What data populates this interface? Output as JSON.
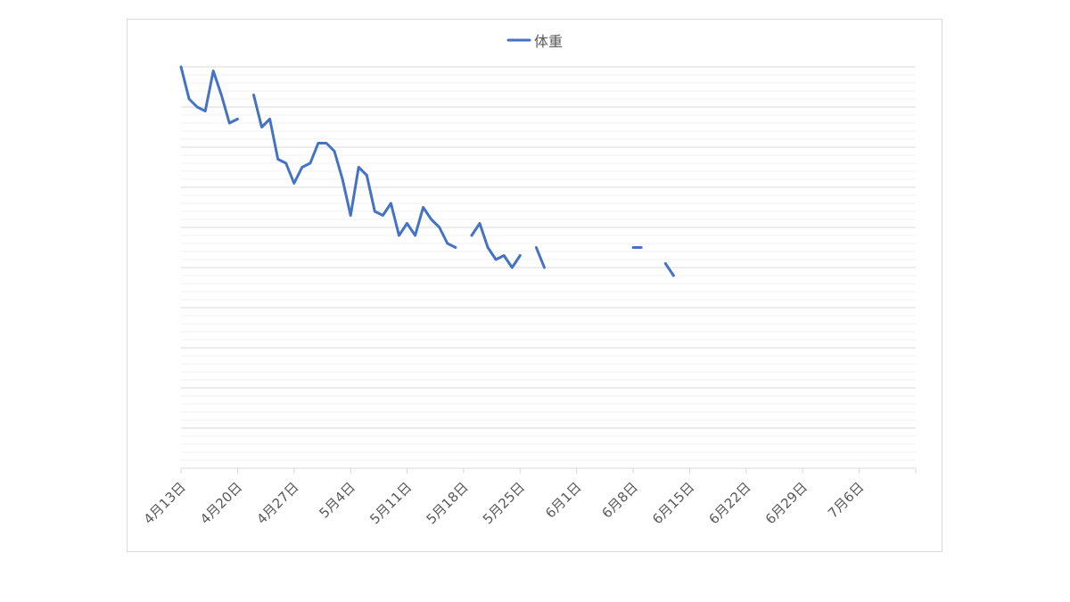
{
  "chart_data": {
    "type": "line",
    "title": "",
    "xlabel": "",
    "ylabel": "",
    "legend": {
      "position": "top",
      "label": "体重"
    },
    "series": [
      {
        "name": "体重",
        "color": "#4472c4",
        "segments": [
          [
            [
              0,
              100
            ],
            [
              1,
              92
            ],
            [
              2,
              90
            ],
            [
              3,
              89
            ],
            [
              4,
              99
            ],
            [
              5,
              93
            ],
            [
              6,
              86
            ],
            [
              7,
              87
            ]
          ],
          [
            [
              9,
              93
            ],
            [
              10,
              85
            ],
            [
              11,
              87
            ],
            [
              12,
              77
            ],
            [
              13,
              76
            ],
            [
              14,
              71
            ],
            [
              15,
              75
            ],
            [
              16,
              76
            ],
            [
              17,
              81
            ],
            [
              18,
              81
            ],
            [
              19,
              79
            ],
            [
              20,
              72
            ],
            [
              21,
              63
            ],
            [
              22,
              75
            ],
            [
              23,
              73
            ],
            [
              24,
              64
            ],
            [
              25,
              63
            ],
            [
              26,
              66
            ],
            [
              27,
              58
            ],
            [
              28,
              61
            ],
            [
              29,
              58
            ],
            [
              30,
              65
            ],
            [
              31,
              62
            ],
            [
              32,
              60
            ],
            [
              33,
              56
            ],
            [
              34,
              55
            ]
          ],
          [
            [
              36,
              58
            ],
            [
              37,
              61
            ],
            [
              38,
              55
            ],
            [
              39,
              52
            ],
            [
              40,
              53
            ],
            [
              41,
              50
            ],
            [
              42,
              53
            ]
          ],
          [
            [
              44,
              55
            ],
            [
              45,
              50
            ]
          ],
          [
            [
              56,
              55
            ],
            [
              57,
              55
            ]
          ],
          [
            [
              60,
              51
            ],
            [
              61,
              48
            ]
          ]
        ]
      }
    ],
    "x_tick_labels": [
      "4月13日",
      "4月20日",
      "4月27日",
      "5月4日",
      "5月11日",
      "5月18日",
      "5月25日",
      "6月1日",
      "6月8日",
      "6月15日",
      "6月22日",
      "6月29日",
      "7月6日"
    ],
    "x_tick_step_days": 7,
    "x_domain_days": [
      0,
      91
    ],
    "y_range": [
      0,
      100
    ],
    "major_gridlines": 10,
    "minor_per_major": 5,
    "grid": true,
    "line_color": "#4472c4",
    "grid_major_color": "#d9d9d9",
    "grid_minor_color": "#f2f2f2"
  }
}
